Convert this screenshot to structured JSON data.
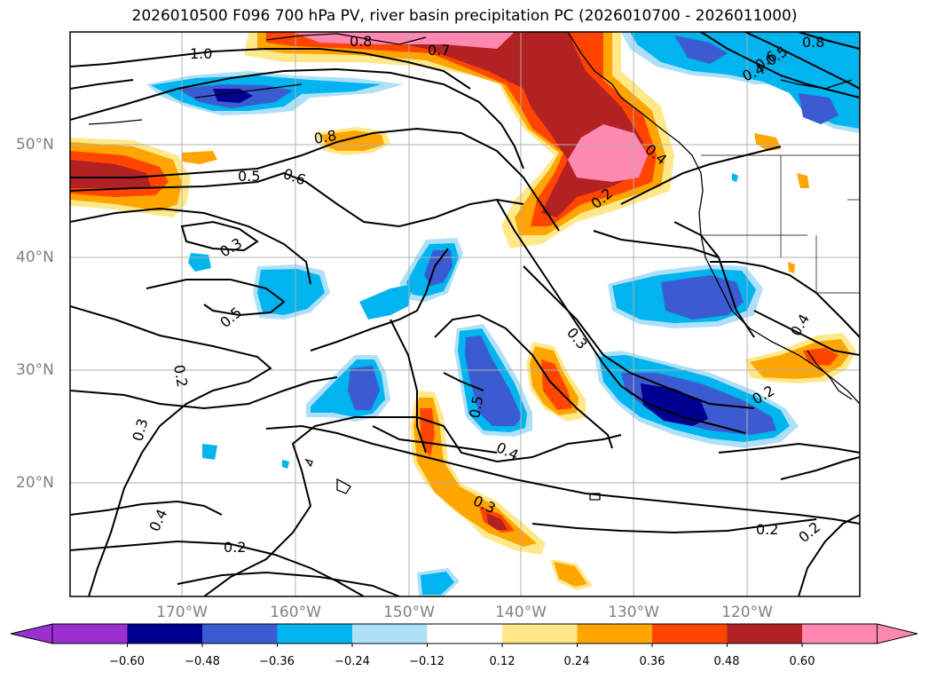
{
  "title": "2026010500 F096 700 hPa PV, river basin precipitation PC (2026010700 - 2026011000)",
  "lon_labels": [
    "170°W",
    "160°W",
    "150°W",
    "140°W",
    "130°W",
    "120°W"
  ],
  "lat_labels": [
    "50°N",
    "40°N",
    "30°N",
    "20°N"
  ],
  "colorbar": {
    "ticks": [
      "−0.60",
      "−0.48",
      "−0.36",
      "−0.24",
      "−0.12",
      "0.12",
      "0.24",
      "0.36",
      "0.48",
      "0.60"
    ],
    "colors": [
      "#9b30d0",
      "#000090",
      "#3a5cd0",
      "#00b4f0",
      "#aee0f8",
      "#ffffff",
      "#ffe88a",
      "#ffa500",
      "#ff4500",
      "#b22222",
      "#ff88b0",
      "#ff88b0"
    ]
  },
  "contour_labels": [
    "1.0",
    "0.8",
    "0.7",
    "0.8",
    "0.6",
    "0.5",
    "0.4",
    "0.5",
    "0.6",
    "0.8",
    "0.3",
    "0.5",
    "0.4",
    "0.2",
    "0.3",
    "0.2",
    "0.3",
    "0.5",
    "0.4",
    "0.3",
    "0.4",
    "0.2",
    "0.2",
    "0.2",
    "0.4",
    "0.2"
  ],
  "colors": {
    "pink": "#ff88b0",
    "darkred": "#b22222",
    "red": "#ff4500",
    "orange": "#ffa500",
    "yellow": "#ffe88a",
    "lightblue": "#aee0f8",
    "cyan": "#00b4f0",
    "blue": "#3a5cd0",
    "navy": "#000090"
  }
}
